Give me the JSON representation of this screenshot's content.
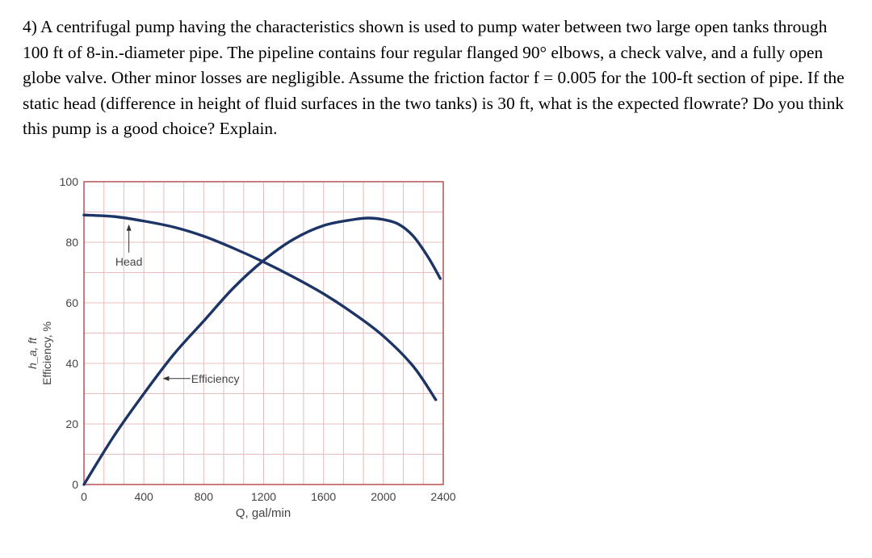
{
  "problem": {
    "text": "4) A centrifugal pump having the characteristics shown is used to pump water between two large open tanks through 100 ft of 8-in.-diameter pipe. The pipeline contains four regular flanged 90° elbows, a check valve, and a fully open globe valve. Other minor losses are negligible. Assume the friction factor f = 0.005 for the 100-ft section of pipe. If the static head (difference in height of fluid surfaces in the two tanks) is 30 ft, what is the expected flowrate? Do you think this pump is a good choice? Explain."
  },
  "chart_data": {
    "type": "line",
    "xlabel": "Q, gal/min",
    "ylabel_lines": [
      "h_a, ft",
      "Efficiency, %"
    ],
    "xlim": [
      0,
      2400
    ],
    "ylim": [
      0,
      100
    ],
    "x_ticks": [
      0,
      400,
      800,
      1200,
      1600,
      2000,
      2400
    ],
    "y_ticks": [
      0,
      20,
      40,
      60,
      80,
      100
    ],
    "grid": true,
    "series": [
      {
        "name": "Head",
        "x": [
          0,
          200,
          400,
          600,
          800,
          1000,
          1200,
          1400,
          1600,
          1800,
          2000,
          2200,
          2350
        ],
        "y": [
          89,
          88.5,
          87,
          85,
          82,
          78,
          73.5,
          68.5,
          63,
          56.5,
          49,
          39,
          28
        ]
      },
      {
        "name": "Efficiency",
        "x": [
          0,
          200,
          400,
          600,
          800,
          1000,
          1200,
          1400,
          1600,
          1800,
          1900,
          2000,
          2100,
          2200,
          2300,
          2380
        ],
        "y": [
          0,
          16,
          30,
          43,
          54,
          65,
          74,
          81,
          85.5,
          87.5,
          88,
          87.5,
          86,
          82,
          75,
          68
        ]
      }
    ],
    "annotations": [
      {
        "label": "Head",
        "x": 300,
        "y": 75
      },
      {
        "label": "Efficiency",
        "x": 700,
        "y": 35
      }
    ],
    "colors": {
      "curve": "#1d3566",
      "grid": "#e8bcbc",
      "frame": "#b04848",
      "text": "#444444"
    }
  }
}
